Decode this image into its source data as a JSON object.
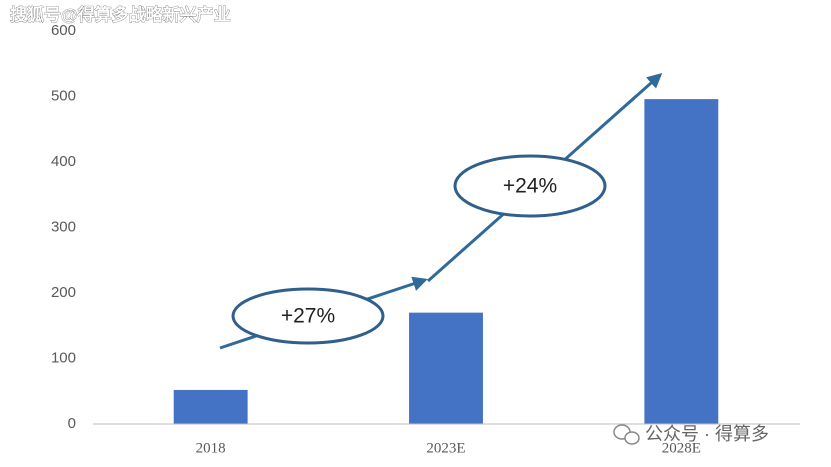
{
  "chart_data": {
    "type": "bar",
    "categories": [
      "2018",
      "2023E",
      "2028E"
    ],
    "values": [
      52,
      170,
      496
    ],
    "color": "#4472c4",
    "ylim": [
      0,
      600
    ],
    "yticks": [
      0,
      100,
      200,
      300,
      400,
      500,
      600
    ],
    "grid": false,
    "annotations": [
      "+27%",
      "+24%"
    ]
  },
  "watermarks": [
    "搜狐号@得算多战略新兴产业",
    "公众号 · 得算多"
  ]
}
